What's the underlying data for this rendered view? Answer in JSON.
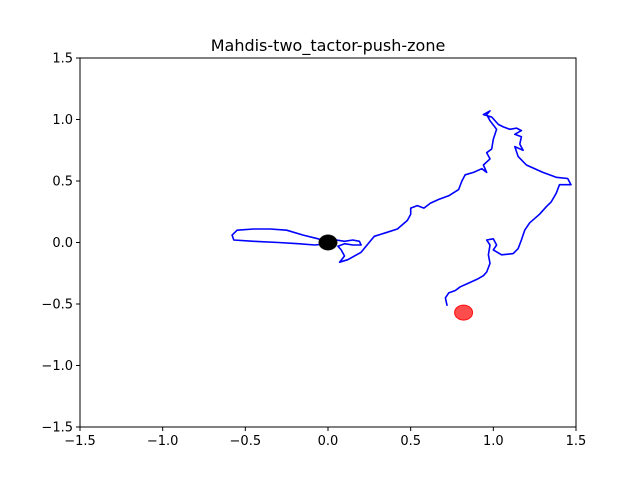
{
  "chart_data": {
    "type": "line",
    "title": "Mahdis-two_tactor-push-zone",
    "xlabel": "",
    "ylabel": "",
    "xlim": [
      -1.5,
      1.5
    ],
    "ylim": [
      -1.5,
      1.5
    ],
    "xticks": [
      -1.5,
      -1.0,
      -0.5,
      0.0,
      0.5,
      1.0,
      1.5
    ],
    "yticks": [
      -1.5,
      -1.0,
      -0.5,
      0.0,
      0.5,
      1.0,
      1.5
    ],
    "xtick_labels": [
      "−1.5",
      "−1.0",
      "−0.5",
      "0.0",
      "0.5",
      "1.0",
      "1.5"
    ],
    "ytick_labels": [
      "−1.5",
      "−1.0",
      "−0.5",
      "0.0",
      "0.5",
      "1.0",
      "1.5"
    ],
    "grid": false,
    "series": [
      {
        "color": "#0000ff",
        "points": [
          [
            0.0,
            0.0
          ],
          [
            0.05,
            0.02
          ],
          [
            0.1,
            0.01
          ],
          [
            0.15,
            0.02
          ],
          [
            0.19,
            0.01
          ],
          [
            0.2,
            -0.02
          ],
          [
            0.15,
            -0.02
          ],
          [
            0.1,
            -0.01
          ],
          [
            0.06,
            -0.03
          ],
          [
            0.08,
            -0.06
          ],
          [
            0.1,
            -0.11
          ],
          [
            0.07,
            -0.16
          ],
          [
            0.12,
            -0.14
          ],
          [
            0.2,
            -0.08
          ],
          [
            0.28,
            0.05
          ],
          [
            0.35,
            0.08
          ],
          [
            0.42,
            0.11
          ],
          [
            0.48,
            0.18
          ],
          [
            0.5,
            0.23
          ],
          [
            0.5,
            0.28
          ],
          [
            0.54,
            0.3
          ],
          [
            0.58,
            0.28
          ],
          [
            0.62,
            0.32
          ],
          [
            0.67,
            0.35
          ],
          [
            0.73,
            0.38
          ],
          [
            0.79,
            0.43
          ],
          [
            0.81,
            0.5
          ],
          [
            0.83,
            0.55
          ],
          [
            0.88,
            0.57
          ],
          [
            0.93,
            0.6
          ],
          [
            0.96,
            0.57
          ],
          [
            0.94,
            0.63
          ],
          [
            0.98,
            0.68
          ],
          [
            0.96,
            0.73
          ],
          [
            0.99,
            0.76
          ],
          [
            1.0,
            0.84
          ],
          [
            1.02,
            0.92
          ],
          [
            0.98,
            0.99
          ],
          [
            0.96,
            1.04
          ],
          [
            0.98,
            1.07
          ],
          [
            0.94,
            1.04
          ],
          [
            0.99,
            1.02
          ],
          [
            1.03,
            0.96
          ],
          [
            1.06,
            0.94
          ],
          [
            1.1,
            0.92
          ],
          [
            1.14,
            0.93
          ],
          [
            1.17,
            0.91
          ],
          [
            1.13,
            0.88
          ],
          [
            1.17,
            0.86
          ],
          [
            1.16,
            0.8
          ],
          [
            1.18,
            0.75
          ],
          [
            1.13,
            0.78
          ],
          [
            1.15,
            0.7
          ],
          [
            1.2,
            0.63
          ],
          [
            1.3,
            0.57
          ],
          [
            1.38,
            0.53
          ],
          [
            1.45,
            0.52
          ],
          [
            1.47,
            0.47
          ],
          [
            1.4,
            0.47
          ],
          [
            1.38,
            0.4
          ],
          [
            1.35,
            0.33
          ],
          [
            1.32,
            0.29
          ],
          [
            1.28,
            0.23
          ],
          [
            1.22,
            0.16
          ],
          [
            1.19,
            0.1
          ],
          [
            1.17,
            0.02
          ],
          [
            1.15,
            -0.05
          ],
          [
            1.12,
            -0.09
          ],
          [
            1.05,
            -0.1
          ],
          [
            1.0,
            -0.06
          ],
          [
            1.02,
            -0.02
          ],
          [
            1.0,
            0.03
          ],
          [
            0.96,
            0.02
          ],
          [
            0.98,
            -0.02
          ],
          [
            0.97,
            -0.1
          ],
          [
            0.98,
            -0.17
          ],
          [
            0.96,
            -0.24
          ],
          [
            0.94,
            -0.27
          ],
          [
            0.9,
            -0.3
          ],
          [
            0.85,
            -0.33
          ],
          [
            0.8,
            -0.36
          ],
          [
            0.77,
            -0.39
          ],
          [
            0.73,
            -0.41
          ],
          [
            0.71,
            -0.45
          ],
          [
            0.72,
            -0.51
          ]
        ]
      },
      {
        "color": "#0000ff",
        "points": [
          [
            0.0,
            0.0
          ],
          [
            -0.06,
            0.03
          ],
          [
            -0.15,
            0.06
          ],
          [
            -0.25,
            0.1
          ],
          [
            -0.35,
            0.11
          ],
          [
            -0.45,
            0.11
          ],
          [
            -0.55,
            0.1
          ],
          [
            -0.58,
            0.06
          ],
          [
            -0.57,
            0.02
          ],
          [
            -0.45,
            0.01
          ],
          [
            -0.3,
            0.0
          ],
          [
            -0.18,
            -0.01
          ],
          [
            -0.08,
            -0.02
          ],
          [
            0.0,
            -0.01
          ]
        ]
      }
    ],
    "markers": [
      {
        "x": 0.0,
        "y": 0.0,
        "color": "#000000"
      },
      {
        "x": 0.82,
        "y": -0.57,
        "color": "#ff0000"
      }
    ]
  }
}
